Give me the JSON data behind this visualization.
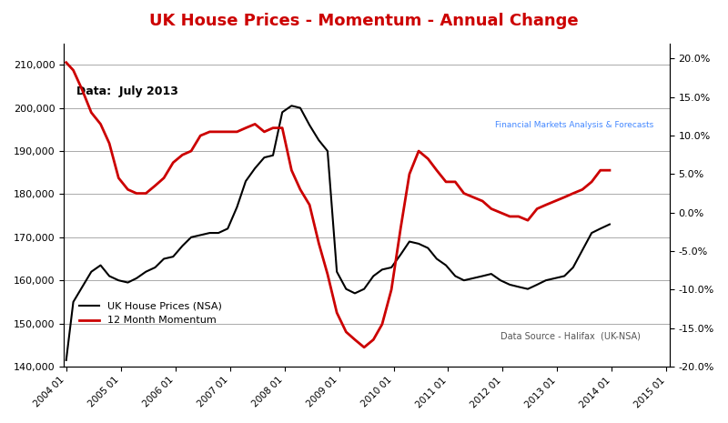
{
  "title": "UK House Prices - Momentum - Annual Change",
  "title_color": "#cc0000",
  "annotation_data": "Data:  July 2013",
  "annotation_source": "Data Source - Halifax  (UK-NSA)",
  "ylabel_left": "",
  "ylabel_right": "",
  "background_color": "#ffffff",
  "plot_bg_color": "#ffffff",
  "grid_color": "#aaaaaa",
  "legend_items": [
    "UK House Prices (NSA)",
    "12 Month Momentum"
  ],
  "legend_colors": [
    "#000000",
    "#cc0000"
  ],
  "xlim_start": 2004.0,
  "xlim_end": 2015.1,
  "ylim_left": [
    140000,
    215000
  ],
  "ylim_right": [
    -20.0,
    22.0
  ],
  "yticks_left": [
    140000,
    150000,
    160000,
    170000,
    180000,
    190000,
    200000,
    210000
  ],
  "yticks_right": [
    -20.0,
    -15.0,
    -10.0,
    -5.0,
    0.0,
    5.0,
    10.0,
    15.0,
    20.0
  ],
  "xticks": [
    2004.04,
    2005.04,
    2006.04,
    2007.04,
    2008.04,
    2009.04,
    2010.04,
    2011.04,
    2012.04,
    2013.04,
    2014.04,
    2015.04
  ],
  "xtick_labels": [
    "2004 01",
    "2005 01",
    "2006 01",
    "2007 01",
    "2008 01",
    "2009 01",
    "2010 01",
    "2011 01",
    "2012 01",
    "2013 01",
    "2014 01",
    "2015 01"
  ],
  "prices": [
    [
      2004.04,
      141500
    ],
    [
      2004.17,
      155000
    ],
    [
      2004.5,
      162000
    ],
    [
      2004.67,
      163500
    ],
    [
      2004.83,
      161000
    ],
    [
      2005.0,
      160000
    ],
    [
      2005.17,
      159500
    ],
    [
      2005.33,
      160500
    ],
    [
      2005.5,
      162000
    ],
    [
      2005.67,
      163000
    ],
    [
      2005.83,
      165000
    ],
    [
      2006.0,
      165500
    ],
    [
      2006.17,
      168000
    ],
    [
      2006.33,
      170000
    ],
    [
      2006.5,
      170500
    ],
    [
      2006.67,
      171000
    ],
    [
      2006.83,
      171000
    ],
    [
      2007.0,
      172000
    ],
    [
      2007.17,
      177000
    ],
    [
      2007.33,
      183000
    ],
    [
      2007.5,
      186000
    ],
    [
      2007.67,
      188500
    ],
    [
      2007.83,
      189000
    ],
    [
      2008.0,
      199000
    ],
    [
      2008.17,
      200500
    ],
    [
      2008.33,
      200000
    ],
    [
      2008.5,
      196000
    ],
    [
      2008.67,
      192500
    ],
    [
      2008.83,
      190000
    ],
    [
      2009.0,
      162000
    ],
    [
      2009.17,
      158000
    ],
    [
      2009.33,
      157000
    ],
    [
      2009.5,
      158000
    ],
    [
      2009.67,
      161000
    ],
    [
      2009.83,
      162500
    ],
    [
      2010.0,
      163000
    ],
    [
      2010.17,
      166000
    ],
    [
      2010.33,
      169000
    ],
    [
      2010.5,
      168500
    ],
    [
      2010.67,
      167500
    ],
    [
      2010.83,
      165000
    ],
    [
      2011.0,
      163500
    ],
    [
      2011.17,
      161000
    ],
    [
      2011.33,
      160000
    ],
    [
      2011.5,
      160500
    ],
    [
      2011.67,
      161000
    ],
    [
      2011.83,
      161500
    ],
    [
      2012.0,
      160000
    ],
    [
      2012.17,
      159000
    ],
    [
      2012.33,
      158500
    ],
    [
      2012.5,
      158000
    ],
    [
      2012.67,
      159000
    ],
    [
      2012.83,
      160000
    ],
    [
      2013.0,
      160500
    ],
    [
      2013.17,
      161000
    ],
    [
      2013.33,
      163000
    ],
    [
      2013.5,
      167000
    ],
    [
      2013.67,
      171000
    ],
    [
      2013.83,
      172000
    ],
    [
      2014.0,
      173000
    ]
  ],
  "momentum": [
    [
      2004.04,
      19.5
    ],
    [
      2004.17,
      18.5
    ],
    [
      2004.33,
      16.0
    ],
    [
      2004.5,
      13.0
    ],
    [
      2004.67,
      11.5
    ],
    [
      2004.83,
      9.0
    ],
    [
      2005.0,
      4.5
    ],
    [
      2005.17,
      3.0
    ],
    [
      2005.33,
      2.5
    ],
    [
      2005.5,
      2.5
    ],
    [
      2005.67,
      3.5
    ],
    [
      2005.83,
      4.5
    ],
    [
      2006.0,
      6.5
    ],
    [
      2006.17,
      7.5
    ],
    [
      2006.33,
      8.0
    ],
    [
      2006.5,
      10.0
    ],
    [
      2006.67,
      10.5
    ],
    [
      2006.83,
      10.5
    ],
    [
      2007.0,
      10.5
    ],
    [
      2007.17,
      10.5
    ],
    [
      2007.33,
      11.0
    ],
    [
      2007.5,
      11.5
    ],
    [
      2007.67,
      10.5
    ],
    [
      2007.83,
      11.0
    ],
    [
      2008.0,
      11.0
    ],
    [
      2008.17,
      5.5
    ],
    [
      2008.33,
      3.0
    ],
    [
      2008.5,
      1.0
    ],
    [
      2008.67,
      -4.0
    ],
    [
      2008.83,
      -8.0
    ],
    [
      2009.0,
      -13.0
    ],
    [
      2009.17,
      -15.5
    ],
    [
      2009.33,
      -16.5
    ],
    [
      2009.5,
      -17.5
    ],
    [
      2009.67,
      -16.5
    ],
    [
      2009.83,
      -14.5
    ],
    [
      2010.0,
      -10.0
    ],
    [
      2010.17,
      -2.0
    ],
    [
      2010.33,
      5.0
    ],
    [
      2010.5,
      8.0
    ],
    [
      2010.67,
      7.0
    ],
    [
      2010.83,
      5.5
    ],
    [
      2011.0,
      4.0
    ],
    [
      2011.17,
      4.0
    ],
    [
      2011.33,
      2.5
    ],
    [
      2011.5,
      2.0
    ],
    [
      2011.67,
      1.5
    ],
    [
      2011.83,
      0.5
    ],
    [
      2012.0,
      0.0
    ],
    [
      2012.17,
      -0.5
    ],
    [
      2012.33,
      -0.5
    ],
    [
      2012.5,
      -1.0
    ],
    [
      2012.67,
      0.5
    ],
    [
      2012.83,
      1.0
    ],
    [
      2013.0,
      1.5
    ],
    [
      2013.17,
      2.0
    ],
    [
      2013.33,
      2.5
    ],
    [
      2013.5,
      3.0
    ],
    [
      2013.67,
      4.0
    ],
    [
      2013.83,
      5.5
    ],
    [
      2014.0,
      5.5
    ]
  ]
}
